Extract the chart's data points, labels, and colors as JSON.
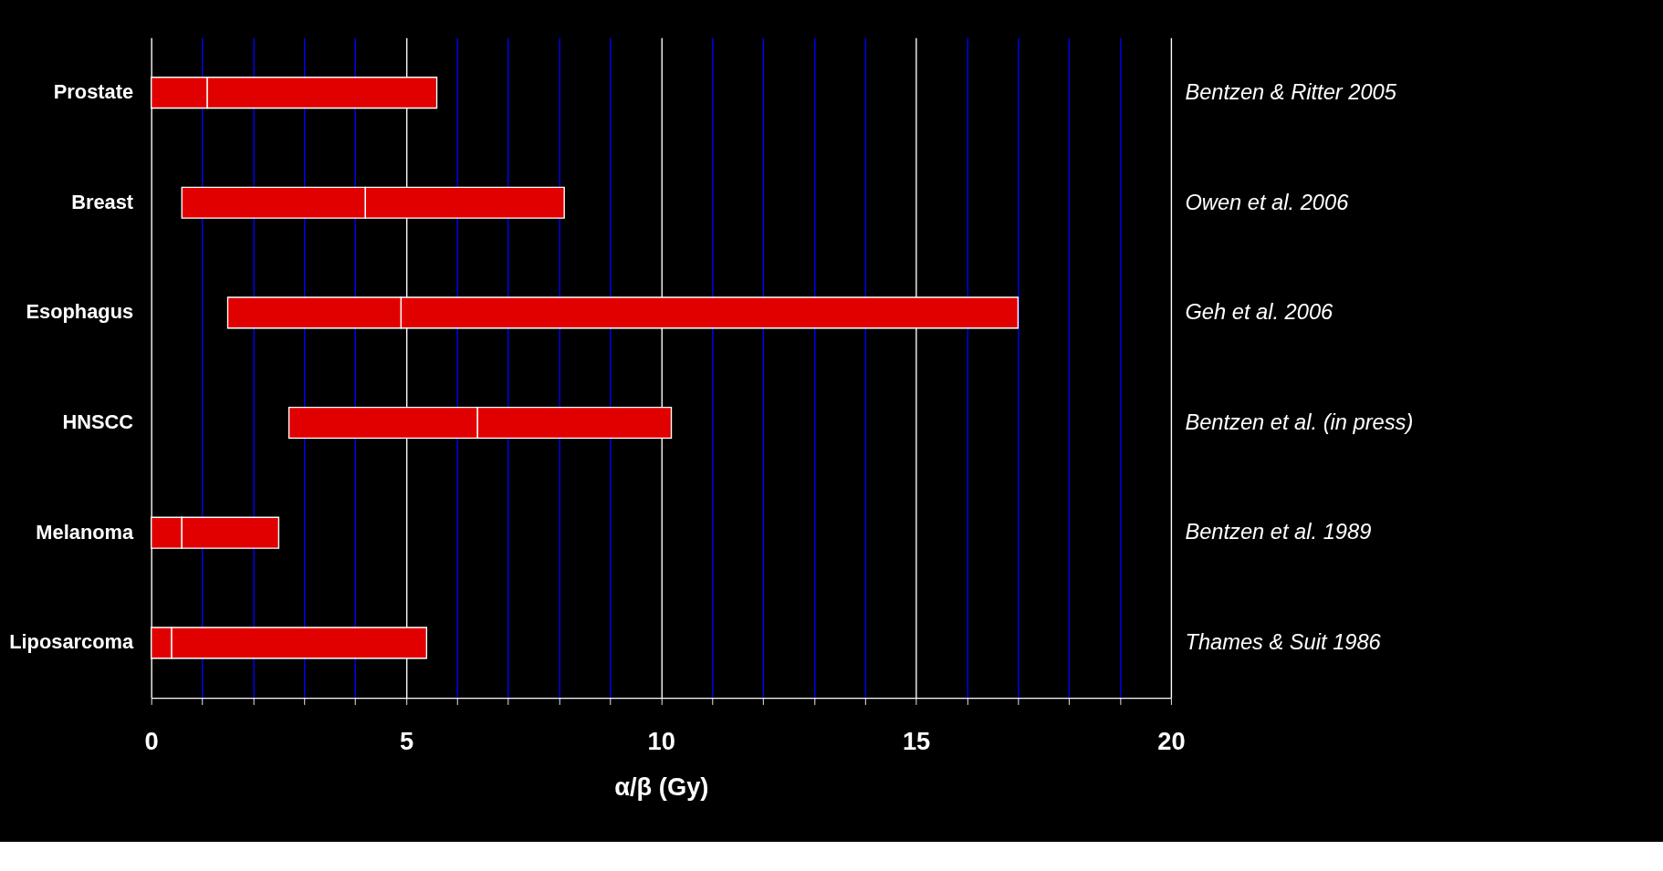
{
  "chart_data": {
    "type": "bar",
    "orientation": "horizontal",
    "xlabel": "α/β (Gy)",
    "categories": [
      "Prostate",
      "Breast",
      "Esophagus",
      "HNSCC",
      "Melanoma",
      "Liposarcoma"
    ],
    "series": [
      {
        "color": "#e00000",
        "base": [
          0,
          0.6,
          1.5,
          2.7,
          0,
          0
        ],
        "values": [
          1.1,
          3.6,
          3.4,
          3.7,
          0.6,
          0.4
        ]
      },
      {
        "color": "#e00000",
        "base": [
          1.1,
          4.2,
          4.9,
          6.4,
          0.6,
          0.4
        ],
        "values": [
          4.5,
          3.9,
          12.1,
          3.8,
          1.9,
          5.0
        ]
      }
    ],
    "xlim": [
      0,
      20
    ],
    "xticks": [
      0,
      {
        "value": 1,
        "label": null
      },
      {
        "value": 2,
        "label": null
      },
      {
        "value": 3,
        "label": null
      },
      {
        "value": 4,
        "label": null
      },
      5,
      {
        "value": 6,
        "label": null
      },
      {
        "value": 7,
        "label": null
      },
      {
        "value": 8,
        "label": null
      },
      {
        "value": 9,
        "label": null
      },
      10,
      {
        "value": 11,
        "label": null
      },
      {
        "value": 12,
        "label": null
      },
      {
        "value": 13,
        "label": null
      },
      {
        "value": 14,
        "label": null
      },
      15,
      {
        "value": 16,
        "label": null
      },
      {
        "value": 17,
        "label": null
      },
      {
        "value": 18,
        "label": null
      },
      {
        "value": 19,
        "label": null
      },
      20
    ],
    "grid": "x",
    "annotations": [
      "Bentzen & Ritter 2005",
      "Owen et al. 2006",
      "Geh et al. 2006",
      "Bentzen et al. (in press)",
      "Bentzen et al. 1989",
      "Thames & Suit 1986"
    ]
  }
}
